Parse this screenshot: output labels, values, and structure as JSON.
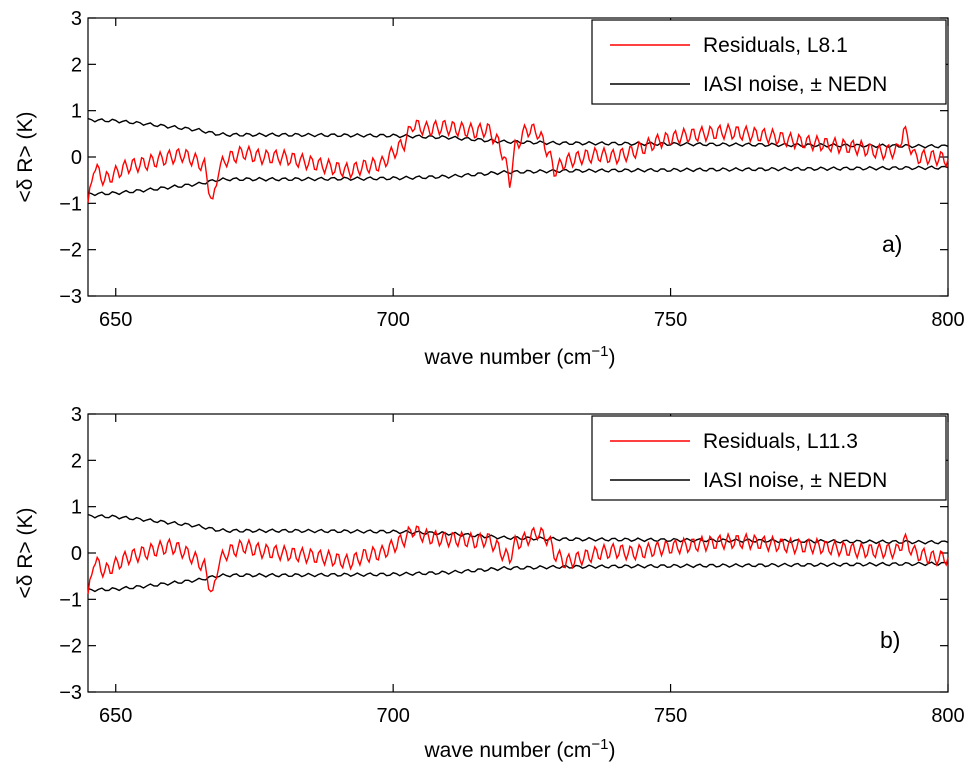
{
  "chart_data": [
    {
      "type": "line",
      "panel_label": "a)",
      "xlabel": "wave number (cm",
      "xlabel_sup": "−1",
      "xlabel_tail": ")",
      "ylabel": "<δ R> (K)",
      "xlim": [
        645,
        800
      ],
      "ylim": [
        -3,
        3
      ],
      "xticks": [
        650,
        700,
        750,
        800
      ],
      "yticks": [
        -3,
        -2,
        -1,
        0,
        1,
        2,
        3
      ],
      "yticklabels": [
        "−3",
        "−2",
        "−1",
        "0",
        "1",
        "2",
        "3"
      ],
      "legend_location": "top-right",
      "series": [
        {
          "name": "Residuals, L8.1",
          "color": "#ff0000",
          "x": [
            645,
            646,
            648,
            650,
            652,
            655,
            658,
            660,
            662,
            664,
            666,
            667.5,
            668.5,
            670,
            673,
            676,
            680,
            684,
            688,
            692,
            695,
            698,
            700,
            702,
            703.5,
            706,
            709,
            712,
            715,
            717,
            719,
            720,
            721,
            722,
            723,
            724,
            726,
            728,
            729,
            731,
            734,
            737,
            740,
            743,
            746,
            748,
            752,
            756,
            760,
            764,
            768,
            772,
            776,
            780,
            784,
            788,
            791,
            792,
            794,
            797,
            800
          ],
          "y": [
            -1.1,
            -0.2,
            -0.5,
            -0.35,
            -0.2,
            -0.15,
            -0.05,
            0.0,
            0.05,
            -0.05,
            -0.2,
            -1.05,
            -0.25,
            -0.05,
            0.1,
            0.0,
            0.0,
            -0.1,
            -0.2,
            -0.3,
            -0.2,
            -0.15,
            0.1,
            0.3,
            0.7,
            0.6,
            0.65,
            0.6,
            0.55,
            0.6,
            0.3,
            0.0,
            -0.55,
            0.2,
            0.4,
            0.6,
            0.55,
            0.1,
            -0.3,
            -0.1,
            0.0,
            0.05,
            0.0,
            0.1,
            0.25,
            0.35,
            0.45,
            0.5,
            0.55,
            0.5,
            0.45,
            0.35,
            0.3,
            0.25,
            0.2,
            0.1,
            0.15,
            0.6,
            0.0,
            0.0,
            -0.05
          ]
        },
        {
          "name": "IASI noise, ± NEDN",
          "color": "#000000",
          "x": [
            645,
            650,
            655,
            660,
            665,
            668,
            670,
            680,
            690,
            700,
            710,
            720,
            730,
            740,
            750,
            760,
            770,
            780,
            790,
            800
          ],
          "y": [
            0.8,
            0.78,
            0.72,
            0.65,
            0.58,
            0.5,
            0.48,
            0.48,
            0.47,
            0.46,
            0.42,
            0.33,
            0.3,
            0.29,
            0.28,
            0.27,
            0.26,
            0.25,
            0.24,
            0.23
          ]
        }
      ]
    },
    {
      "type": "line",
      "panel_label": "b)",
      "xlabel": "wave number (cm",
      "xlabel_sup": "−1",
      "xlabel_tail": ")",
      "ylabel": "<δ R> (K)",
      "xlim": [
        645,
        800
      ],
      "ylim": [
        -3,
        3
      ],
      "xticks": [
        650,
        700,
        750,
        800
      ],
      "yticks": [
        -3,
        -2,
        -1,
        0,
        1,
        2,
        3
      ],
      "yticklabels": [
        "−3",
        "−2",
        "−1",
        "0",
        "1",
        "2",
        "3"
      ],
      "legend_location": "top-right",
      "series": [
        {
          "name": "Residuals, L11.3",
          "color": "#ff0000",
          "x": [
            645,
            646,
            648,
            650,
            652,
            655,
            658,
            660,
            662,
            664,
            666,
            667.5,
            668.5,
            670,
            673,
            676,
            680,
            684,
            688,
            692,
            695,
            698,
            700,
            702,
            703.5,
            706,
            709,
            712,
            715,
            717,
            719,
            720,
            721,
            722,
            724,
            726,
            728,
            729,
            731,
            734,
            737,
            740,
            743,
            746,
            748,
            752,
            756,
            760,
            764,
            768,
            772,
            776,
            780,
            784,
            788,
            791,
            792,
            794,
            797,
            800
          ],
          "y": [
            -1.0,
            -0.15,
            -0.4,
            -0.25,
            -0.1,
            0.0,
            0.1,
            0.15,
            0.05,
            -0.1,
            -0.3,
            -0.95,
            -0.2,
            0.0,
            0.15,
            0.05,
            0.0,
            -0.05,
            -0.1,
            -0.2,
            -0.05,
            0.0,
            0.15,
            0.3,
            0.5,
            0.35,
            0.3,
            0.3,
            0.25,
            0.3,
            0.1,
            -0.05,
            -0.1,
            0.2,
            0.3,
            0.45,
            0.3,
            0.0,
            -0.2,
            -0.1,
            0.0,
            0.05,
            0.0,
            0.05,
            0.1,
            0.15,
            0.2,
            0.25,
            0.25,
            0.2,
            0.15,
            0.15,
            0.1,
            0.05,
            0.05,
            0.05,
            0.3,
            0.0,
            -0.1,
            -0.1
          ]
        },
        {
          "name": "IASI noise, ± NEDN",
          "color": "#000000",
          "x": [
            645,
            650,
            655,
            660,
            665,
            668,
            670,
            680,
            690,
            700,
            710,
            720,
            730,
            740,
            750,
            760,
            770,
            780,
            790,
            800
          ],
          "y": [
            0.8,
            0.78,
            0.72,
            0.65,
            0.58,
            0.5,
            0.48,
            0.48,
            0.47,
            0.46,
            0.42,
            0.33,
            0.3,
            0.29,
            0.28,
            0.27,
            0.26,
            0.25,
            0.24,
            0.23
          ]
        }
      ]
    }
  ]
}
